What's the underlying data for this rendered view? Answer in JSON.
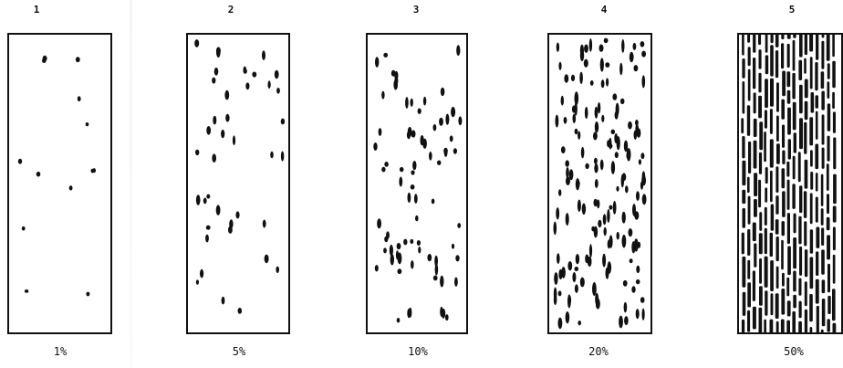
{
  "figure": {
    "panels": [
      {
        "number": "1",
        "label": "1%",
        "fraction": 0.01
      },
      {
        "number": "2",
        "label": "5%",
        "fraction": 0.05
      },
      {
        "number": "3",
        "label": "10%",
        "fraction": 0.1
      },
      {
        "number": "4",
        "label": "20%",
        "fraction": 0.2
      },
      {
        "number": "5",
        "label": "50%",
        "fraction": 0.5
      }
    ]
  }
}
